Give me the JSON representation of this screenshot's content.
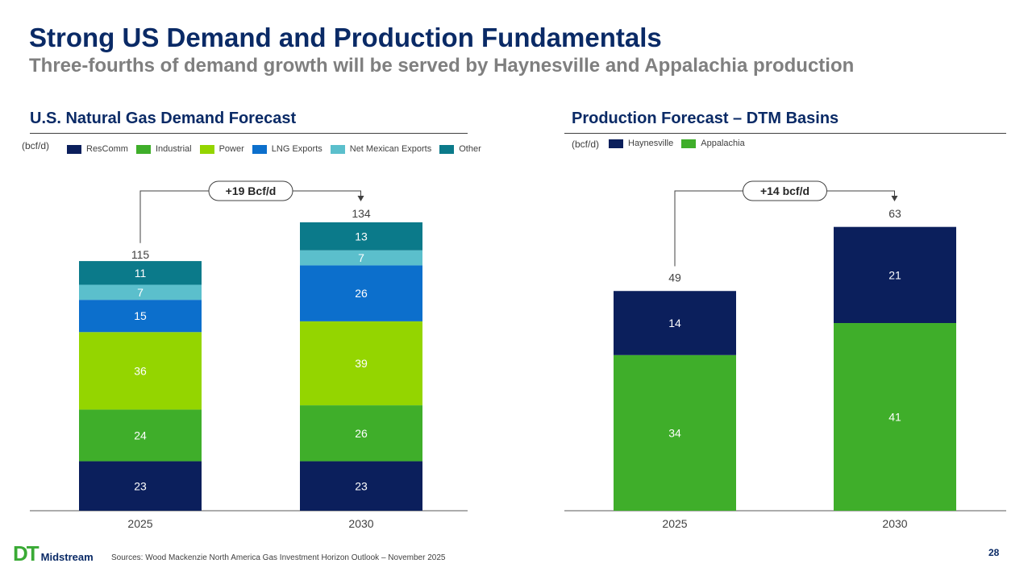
{
  "slide": {
    "title": "Strong US Demand and Production Fundamentals",
    "subtitle": "Three-fourths of demand growth will be served by Haynesville and Appalachia production",
    "source": "Sources: Wood Mackenzie North America Gas Investment Horizon Outlook – November 2025",
    "page_number": "28",
    "logo_mark": "DT",
    "logo_text": "Midstream"
  },
  "left_panel": {
    "title": "U.S. Natural Gas Demand Forecast",
    "unit": "(bcf/d)"
  },
  "right_panel": {
    "title": "Production Forecast – DTM Basins",
    "unit": "(bcf/d)"
  },
  "chart_data": [
    {
      "type": "bar",
      "stacked": true,
      "title": "U.S. Natural Gas Demand Forecast",
      "ylabel": "(bcf/d)",
      "categories": [
        "2025",
        "2030"
      ],
      "series": [
        {
          "name": "ResComm",
          "values": [
            23,
            23
          ],
          "color": "#0b1f5c"
        },
        {
          "name": "Industrial",
          "values": [
            24,
            26
          ],
          "color": "#3fae2a"
        },
        {
          "name": "Power",
          "values": [
            36,
            39
          ],
          "color": "#94d500"
        },
        {
          "name": "LNG Exports",
          "values": [
            15,
            26
          ],
          "color": "#0c6fcc"
        },
        {
          "name": "Net Mexican Exports",
          "values": [
            7,
            7
          ],
          "color": "#5bbfcc"
        },
        {
          "name": "Other",
          "values": [
            11,
            13
          ],
          "color": "#0b7a8a"
        }
      ],
      "totals": [
        115,
        134
      ],
      "annotation": "+19 Bcf/d",
      "legend_position": "top",
      "ylim": [
        0,
        134
      ]
    },
    {
      "type": "bar",
      "stacked": true,
      "title": "Production Forecast – DTM Basins",
      "ylabel": "(bcf/d)",
      "categories": [
        "2025",
        "2030"
      ],
      "series": [
        {
          "name": "Appalachia",
          "values": [
            34,
            41
          ],
          "color": "#3fae2a"
        },
        {
          "name": "Haynesville",
          "values": [
            14,
            21
          ],
          "color": "#0b1f5c"
        }
      ],
      "legend_order": [
        "Haynesville",
        "Appalachia"
      ],
      "totals": [
        49,
        63
      ],
      "annotation": "+14 bcf/d",
      "legend_position": "top",
      "ylim": [
        0,
        63
      ]
    }
  ]
}
